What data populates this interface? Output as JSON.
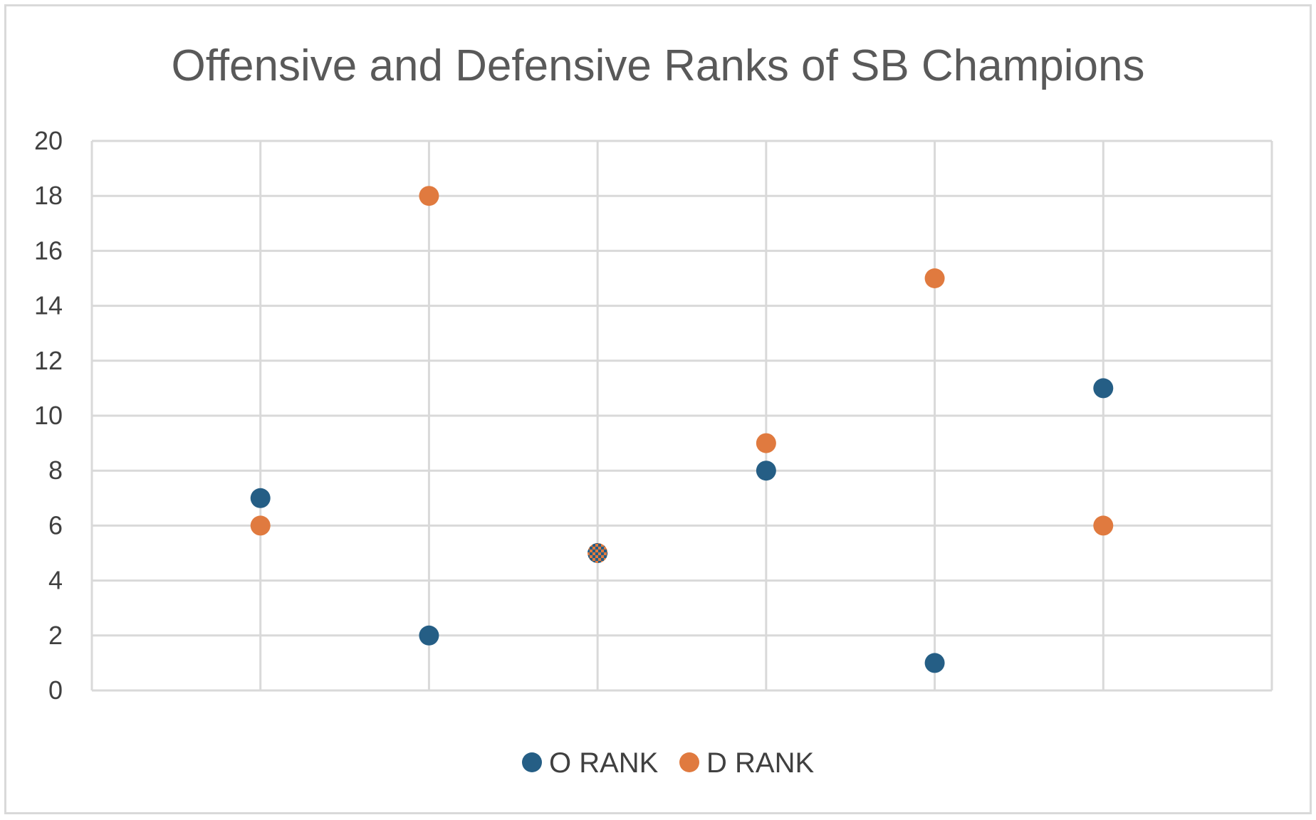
{
  "chart_data": {
    "type": "scatter",
    "title": "Offensive and Defensive Ranks of SB Champions",
    "xlabel": "",
    "ylabel": "",
    "x": [
      1,
      2,
      3,
      4,
      5,
      6
    ],
    "xlim": [
      0,
      7
    ],
    "ylim": [
      0,
      20
    ],
    "y_ticks": [
      "0",
      "2",
      "4",
      "6",
      "8",
      "10",
      "12",
      "14",
      "16",
      "18",
      "20"
    ],
    "grid": true,
    "legend_position": "bottom",
    "series": [
      {
        "name": "O RANK",
        "color": "#255e85",
        "values": [
          7,
          2,
          5,
          8,
          1,
          11
        ]
      },
      {
        "name": "D RANK",
        "color": "#e07a3f",
        "values": [
          6,
          18,
          5,
          9,
          15,
          6
        ]
      }
    ]
  }
}
